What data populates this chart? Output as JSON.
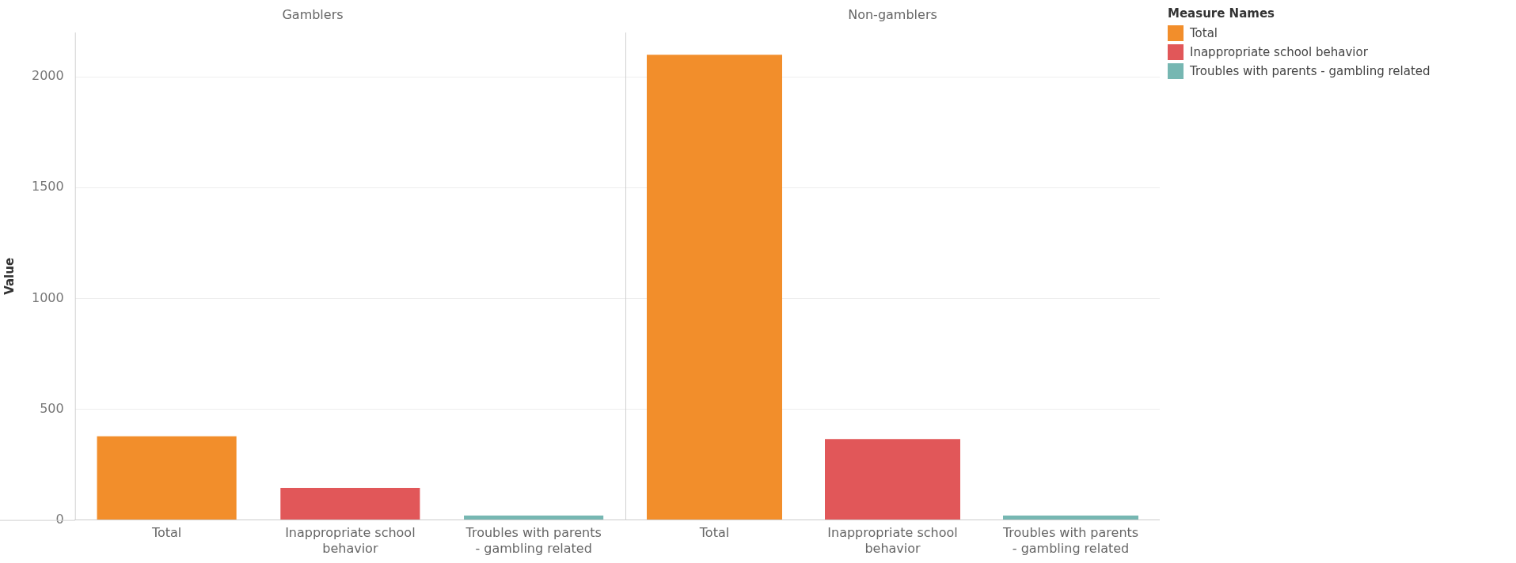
{
  "chart_data": [
    {
      "type": "bar",
      "title": "Gamblers",
      "ylabel": "Value",
      "categories": [
        "Total",
        "Inappropriate school behavior",
        "Troubles with parents - gambling related"
      ],
      "series": [
        {
          "color": "#f28e2b",
          "values": [
            378,
            null,
            null
          ]
        },
        {
          "color": "#e15759",
          "values": [
            null,
            145,
            null
          ]
        },
        {
          "color": "#76b7b2",
          "values": [
            null,
            null,
            20
          ]
        }
      ],
      "ylim": [
        0,
        2200
      ],
      "yticks": [
        0,
        500,
        1000,
        1500,
        2000
      ],
      "grid": "y",
      "legend": "right"
    },
    {
      "type": "bar",
      "title": "Non-gamblers",
      "categories": [
        "Total",
        "Inappropriate school behavior",
        "Troubles with parents - gambling related"
      ],
      "series": [
        {
          "name": "Total",
          "color": "#f28e2b",
          "values": [
            2100,
            null,
            null
          ]
        },
        {
          "name": "Inappropriate school behavior",
          "color": "#e15759",
          "values": [
            null,
            365,
            null
          ]
        },
        {
          "name": "Troubles with parents - gambling related",
          "color": "#76b7b2",
          "values": [
            null,
            null,
            20
          ]
        }
      ],
      "ylim": [
        0,
        2200
      ],
      "yticks": [
        0,
        500,
        1000,
        1500,
        2000
      ],
      "grid": "y",
      "tick_labels": "x",
      "legend": "right",
      "legend_title": "Measure Names"
    }
  ]
}
